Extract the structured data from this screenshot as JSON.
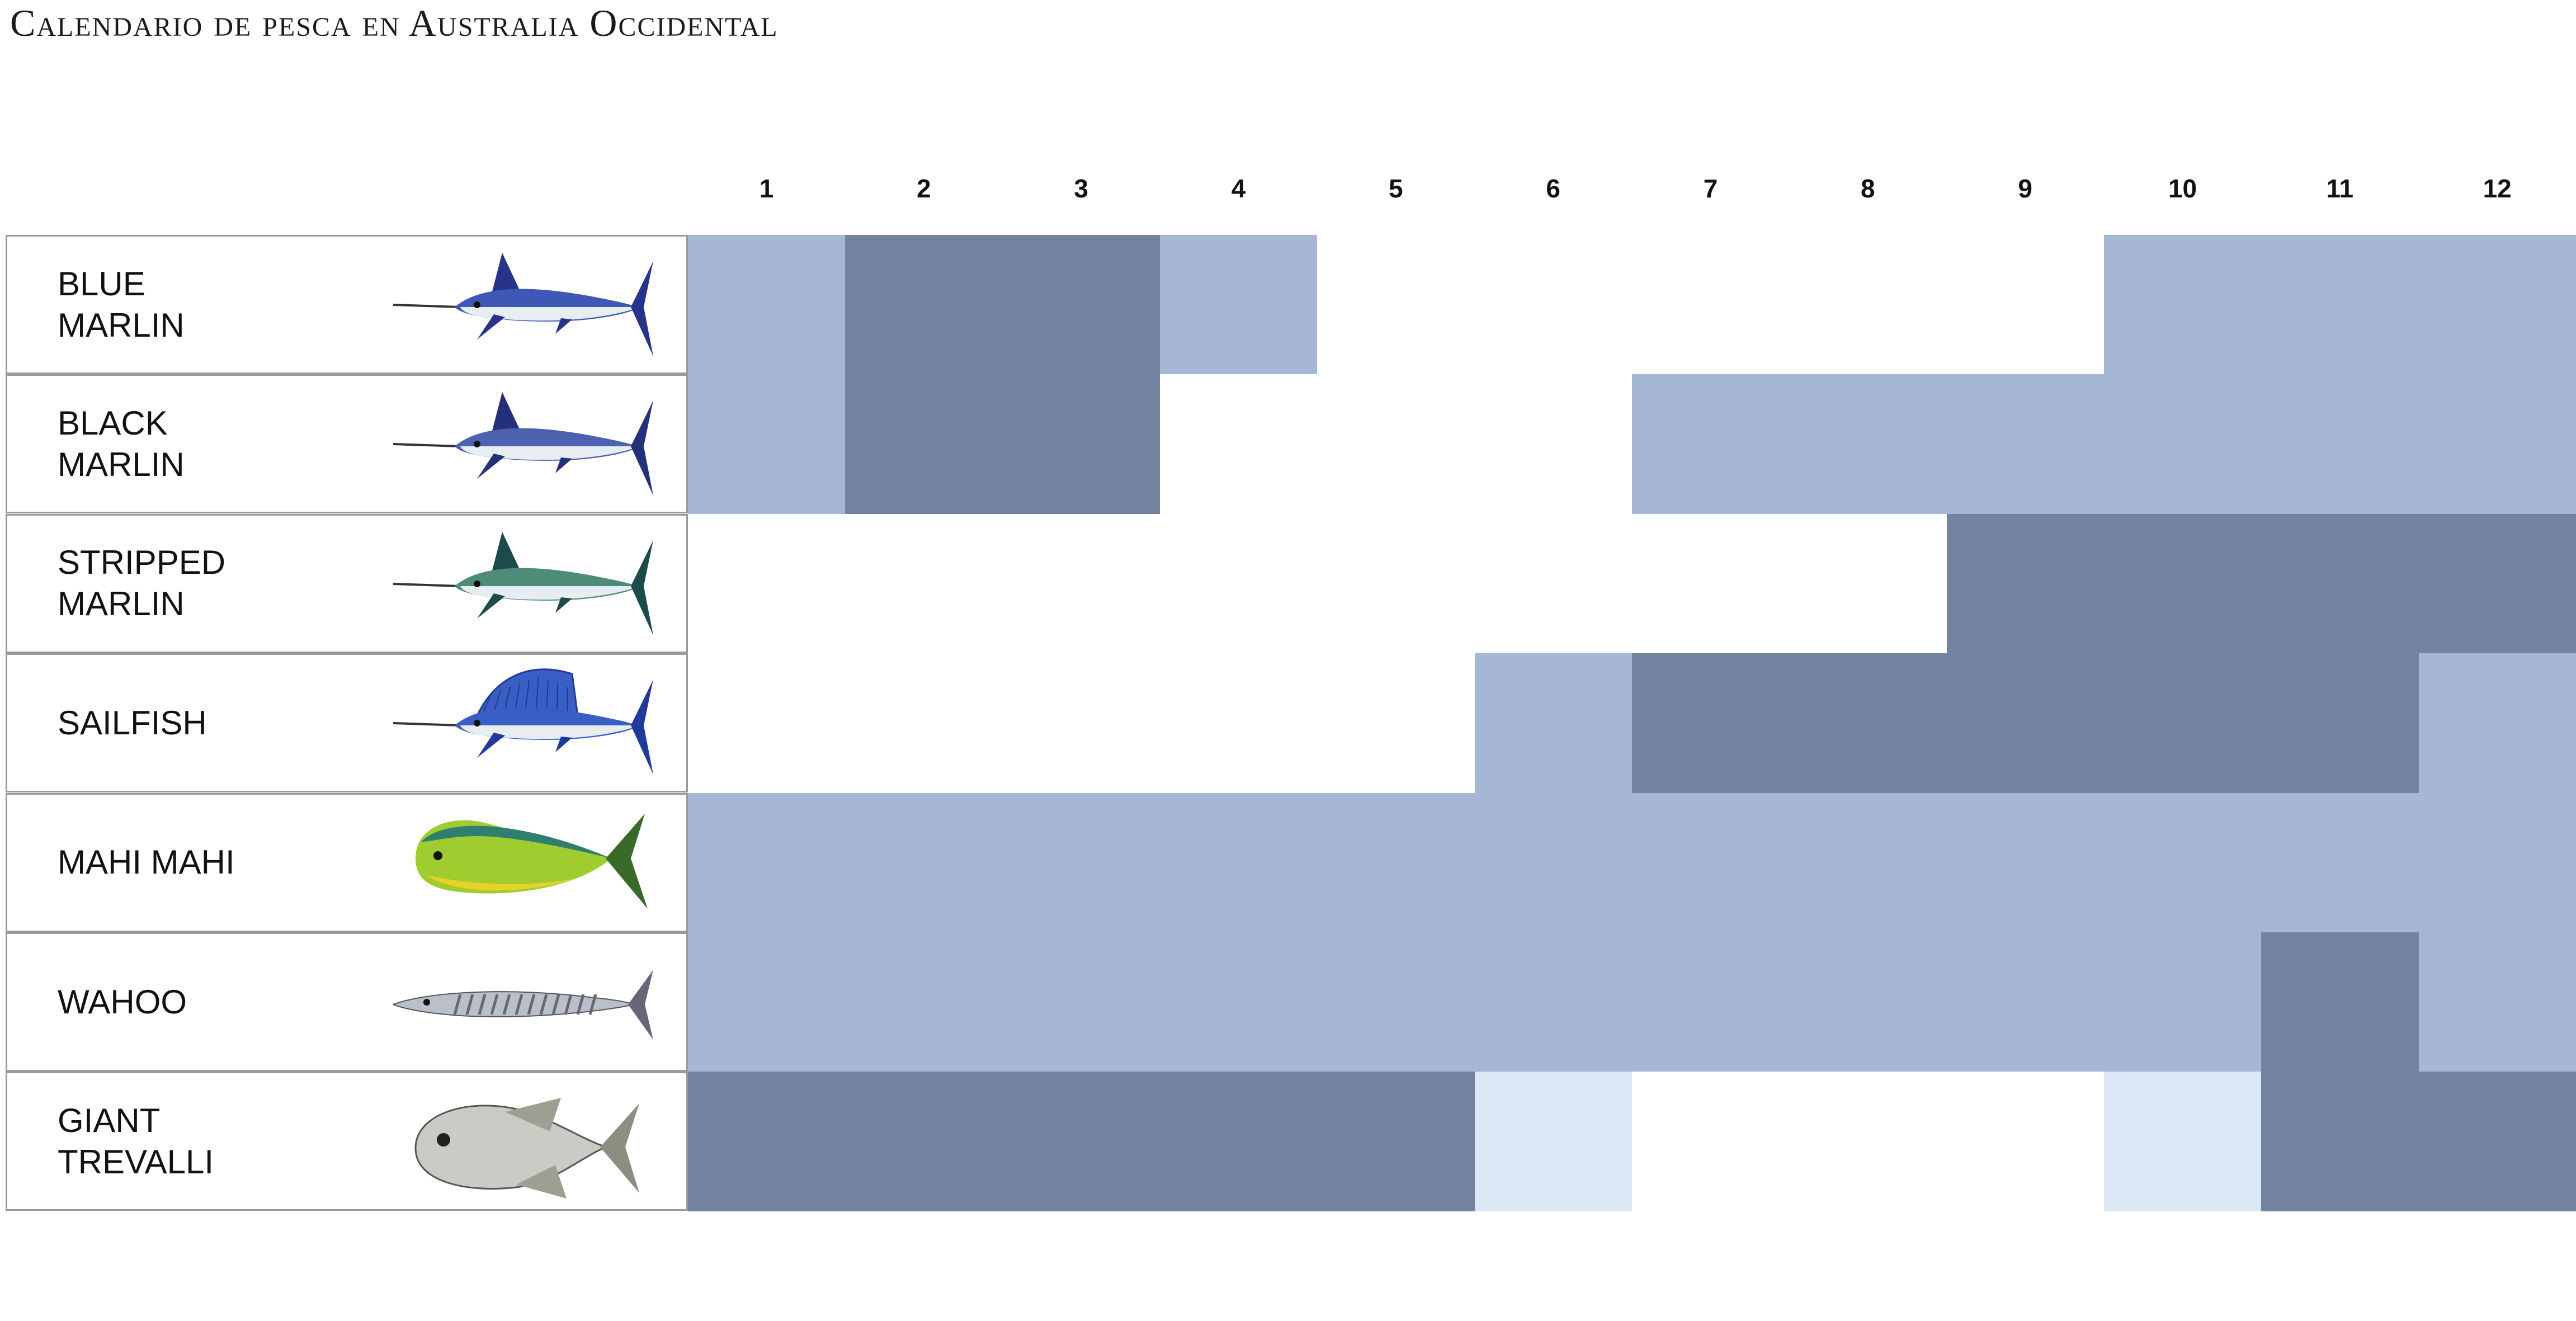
{
  "title": "Calendario de pesca en Australia Occidental",
  "colors": {
    "none": "#ffffff",
    "low": "#dce7f6",
    "medium": "#a6b7d5",
    "high": "#74839f"
  },
  "chart_data": {
    "type": "heatmap",
    "title": "Calendario de pesca en Australia Occidental",
    "x": [
      "1",
      "2",
      "3",
      "4",
      "5",
      "6",
      "7",
      "8",
      "9",
      "10",
      "11",
      "12"
    ],
    "levels_note": "0 = none, 1 = low, 2 = medium, 3 = high",
    "rows": [
      {
        "name": "Blue\nMarlin",
        "icon": "blue-marlin-icon",
        "values": [
          2,
          3,
          3,
          2,
          0,
          0,
          0,
          0,
          0,
          2,
          2,
          2
        ]
      },
      {
        "name": "Black\nMarlin",
        "icon": "black-marlin-icon",
        "values": [
          2,
          3,
          3,
          0,
          0,
          0,
          2,
          2,
          2,
          2,
          2,
          2
        ]
      },
      {
        "name": "Stripped\nMarlin",
        "icon": "striped-marlin-icon",
        "values": [
          0,
          0,
          0,
          0,
          0,
          0,
          0,
          0,
          3,
          3,
          3,
          3
        ]
      },
      {
        "name": "Sailfish",
        "icon": "sailfish-icon",
        "values": [
          0,
          0,
          0,
          0,
          0,
          2,
          3,
          3,
          3,
          3,
          3,
          2
        ]
      },
      {
        "name": "Mahi Mahi",
        "icon": "mahi-mahi-icon",
        "values": [
          2,
          2,
          2,
          2,
          2,
          2,
          2,
          2,
          2,
          2,
          2,
          2
        ]
      },
      {
        "name": "Wahoo",
        "icon": "wahoo-icon",
        "values": [
          2,
          2,
          2,
          2,
          2,
          2,
          2,
          2,
          2,
          2,
          3,
          2
        ]
      },
      {
        "name": "Giant\nTrevalli",
        "icon": "giant-trevally-icon",
        "values": [
          3,
          3,
          3,
          3,
          3,
          1,
          0,
          0,
          0,
          1,
          3,
          3
        ]
      }
    ]
  }
}
